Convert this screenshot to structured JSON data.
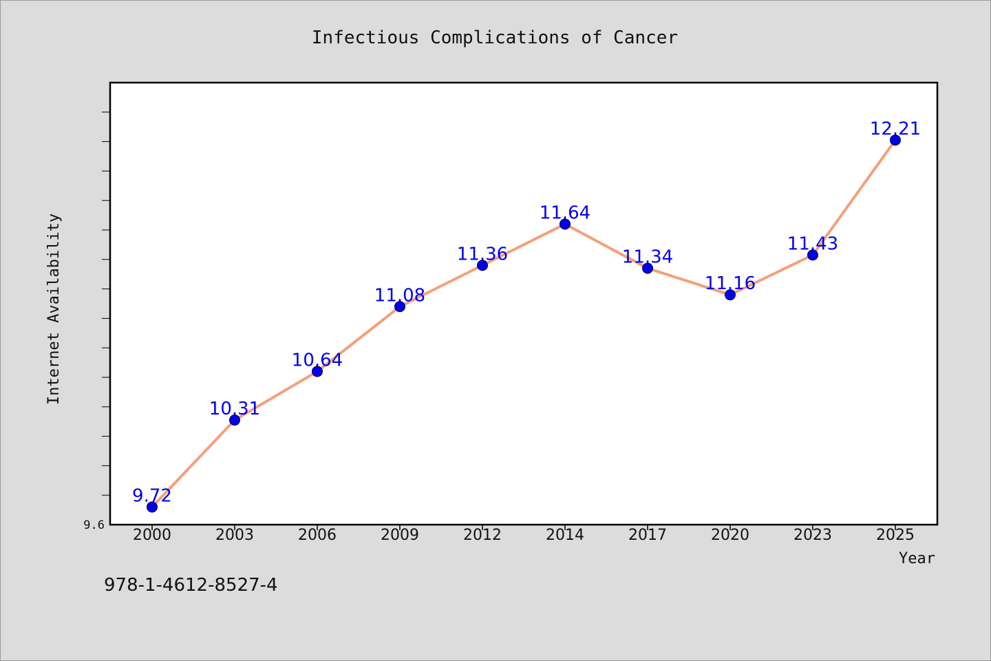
{
  "chart_data": {
    "type": "line",
    "title": "Infectious Complications of Cancer",
    "xlabel": "Year",
    "ylabel": "Internet Availability",
    "categories": [
      "2000",
      "2003",
      "2006",
      "2009",
      "2012",
      "2014",
      "2017",
      "2020",
      "2023",
      "2025"
    ],
    "series": [
      {
        "values": [
          9.72,
          10.31,
          10.64,
          11.08,
          11.36,
          11.64,
          11.34,
          11.16,
          11.43,
          12.21
        ],
        "labels": [
          "9.72",
          "10.31",
          "10.64",
          "11.08",
          "11.36",
          "11.64",
          "11.34",
          "11.16",
          "11.43",
          "12.21"
        ]
      }
    ],
    "ylim": [
      9.6,
      12.6
    ],
    "y_tick_labels": [
      "9.6"
    ],
    "grid": false,
    "colors": {
      "line": "#f4a07a",
      "marker": "#0000ee",
      "data_label": "#0000ee",
      "axis": "#000000",
      "plot_background": "#ffffff",
      "page_background": "#dcdcdc"
    }
  },
  "footer": {
    "isbn": "978-1-4612-8527-4"
  }
}
